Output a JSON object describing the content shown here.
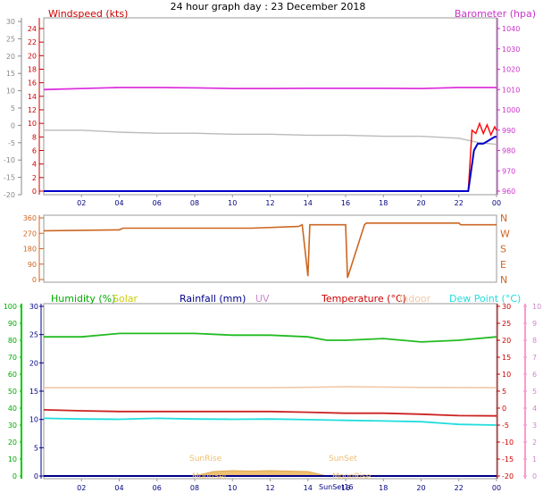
{
  "title": "24 hour graph day : 23 December 2018",
  "time_ticks": [
    "02",
    "04",
    "06",
    "08",
    "10",
    "12",
    "14",
    "16",
    "18",
    "20",
    "22",
    "00"
  ],
  "panels": {
    "wind": {
      "left_label": "Windspeed (kts)",
      "right_label": "Barometer (hpa)",
      "left_outer_ticks": [
        "30",
        "25",
        "20",
        "15",
        "10",
        "5",
        "0",
        "-5",
        "-10",
        "-15",
        "-20"
      ],
      "left_inner_ticks": [
        "24",
        "22",
        "20",
        "18",
        "16",
        "14",
        "12",
        "10",
        "8",
        "6",
        "4",
        "2",
        "0"
      ],
      "right_ticks": [
        "1040",
        "1030",
        "1020",
        "1010",
        "1000",
        "990",
        "980",
        "970",
        "960"
      ],
      "colors": {
        "left_label": "#cc0000",
        "right_label": "#cc33cc",
        "left_inner": "#cc0000",
        "left_outer": "#777777"
      }
    },
    "direction": {
      "left_ticks": [
        "360",
        "270",
        "180",
        "90",
        "0"
      ],
      "right_ticks": [
        "N",
        "W",
        "S",
        "E",
        "N"
      ]
    },
    "temp": {
      "legend": [
        {
          "label": "Humidity (%)",
          "color": "#00aa00"
        },
        {
          "label": "Solar",
          "color": "#cccc00"
        },
        {
          "label": "Rainfall (mm)",
          "color": "#000088"
        },
        {
          "label": "UV",
          "color": "#cc88cc"
        },
        {
          "label": "Temperature (°C)",
          "color": "#cc0000"
        },
        {
          "label": "Indoor",
          "color": "#f0c8a8"
        },
        {
          "label": "Dew Point (°C)",
          "color": "#22dddd"
        }
      ],
      "humidity_ticks": [
        "100",
        "90",
        "80",
        "70",
        "60",
        "50",
        "40",
        "30",
        "20",
        "10",
        "0"
      ],
      "rain_ticks": [
        "30",
        "25",
        "20",
        "15",
        "10",
        "5",
        "0"
      ],
      "temp_ticks": [
        "30",
        "25",
        "20",
        "15",
        "10",
        "5",
        "0",
        "-5",
        "-10",
        "-15",
        "-20"
      ],
      "uv_ticks": [
        "10",
        "9",
        "8",
        "7",
        "6",
        "5",
        "4",
        "3",
        "2",
        "1",
        "0"
      ],
      "sun_labels": {
        "sunrise": "SunRise",
        "sunset": "SunSet",
        "moonset": "MoonSet",
        "moonrise": "MoonRise",
        "sunset16": "SunSet16"
      }
    }
  },
  "chart_data": [
    {
      "type": "line",
      "x_unit": "hours",
      "series": [
        {
          "name": "Windspeed (kts)",
          "color": "#0000cc",
          "x": [
            0,
            20,
            22,
            22.5,
            22.8,
            23,
            23.3,
            23.6,
            23.9,
            24
          ],
          "y": [
            0,
            0,
            0,
            0,
            6,
            7,
            7,
            7.5,
            8,
            8
          ]
        },
        {
          "name": "Wind gust",
          "color": "#ff0000",
          "x": [
            22.5,
            22.7,
            22.9,
            23.1,
            23.3,
            23.5,
            23.7,
            23.9,
            24
          ],
          "y": [
            0,
            9,
            8.5,
            10,
            8.5,
            9.8,
            8.3,
            9.5,
            9
          ]
        },
        {
          "name": "Barometer (hpa)",
          "color": "#dd33dd",
          "x": [
            0,
            2,
            4,
            6,
            8,
            10,
            12,
            14,
            16,
            18,
            20,
            22,
            24
          ],
          "y": [
            1010,
            1010.5,
            1011,
            1011,
            1010.8,
            1010.5,
            1010.5,
            1010.6,
            1010.6,
            1010.6,
            1010.5,
            1011,
            1011
          ]
        },
        {
          "name": "Barometer trace",
          "color": "#bbbbbb",
          "x": [
            0,
            2,
            4,
            6,
            8,
            10,
            12,
            14,
            16,
            18,
            20,
            22,
            23,
            24
          ],
          "y": [
            990,
            990,
            989,
            988.5,
            988.5,
            988,
            988,
            987.5,
            987.5,
            987,
            987,
            986,
            984,
            983
          ]
        }
      ]
    },
    {
      "type": "line",
      "x_unit": "hours",
      "series": [
        {
          "name": "Wind direction",
          "color": "#cc6622",
          "x": [
            0,
            4,
            4.2,
            10,
            11,
            13.5,
            13.7,
            14,
            14.1,
            16,
            16.1,
            17,
            17.1,
            18,
            18.1,
            22,
            22.1,
            24
          ],
          "y": [
            285,
            290,
            300,
            300,
            300,
            310,
            320,
            20,
            320,
            320,
            10,
            320,
            330,
            330,
            330,
            330,
            320,
            320
          ]
        }
      ]
    },
    {
      "type": "line",
      "x_unit": "hours",
      "series": [
        {
          "name": "Humidity (%)",
          "color": "#22bb22",
          "x": [
            0,
            2,
            4,
            6,
            8,
            10,
            12,
            14,
            15,
            16,
            18,
            20,
            22,
            24
          ],
          "y": [
            82,
            82,
            84,
            84,
            84,
            83,
            83,
            82,
            80,
            80,
            81,
            79,
            80,
            82
          ]
        },
        {
          "name": "Temperature (°C)",
          "color": "#cc2222",
          "x": [
            0,
            2,
            4,
            6,
            8,
            10,
            12,
            14,
            16,
            18,
            20,
            22,
            24
          ],
          "y": [
            -0.5,
            -0.8,
            -1,
            -1,
            -1,
            -1,
            -1,
            -1.2,
            -1.5,
            -1.5,
            -1.8,
            -2.2,
            -2.3
          ]
        },
        {
          "name": "Dew Point (°C)",
          "color": "#22dddd",
          "x": [
            0,
            2,
            4,
            6,
            8,
            10,
            12,
            14,
            16,
            18,
            20,
            22,
            24
          ],
          "y": [
            -3,
            -3.2,
            -3.3,
            -3,
            -3.2,
            -3.3,
            -3.2,
            -3.4,
            -3.6,
            -3.8,
            -4,
            -4.8,
            -5
          ]
        },
        {
          "name": "Indoor",
          "color": "#f0c8a8",
          "x": [
            0,
            8,
            12,
            16,
            20,
            24
          ],
          "y": [
            6,
            6,
            6,
            6.3,
            6.1,
            6
          ]
        },
        {
          "name": "Solar",
          "color": "#f0c070",
          "x": [
            8,
            9,
            10,
            11,
            12,
            13,
            14,
            15
          ],
          "y": [
            0,
            1,
            1.2,
            1.1,
            1.2,
            1.1,
            1,
            0
          ]
        }
      ]
    }
  ]
}
